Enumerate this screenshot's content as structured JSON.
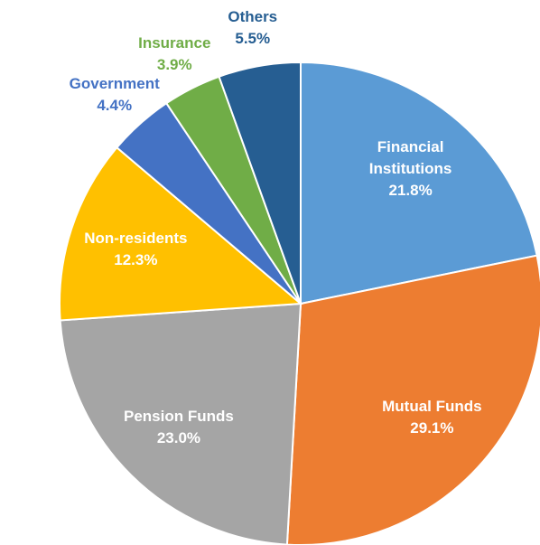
{
  "chart_data": {
    "type": "pie",
    "categories": [
      "Financial Institutions",
      "Mutual Funds",
      "Pension Funds",
      "Non-residents",
      "Government",
      "Insurance",
      "Others"
    ],
    "values": [
      21.8,
      29.1,
      23.0,
      12.3,
      4.4,
      3.9,
      5.5
    ],
    "value_labels": [
      "21.8%",
      "29.1%",
      "23.0%",
      "12.3%",
      "4.4%",
      "3.9%",
      "5.5%"
    ],
    "colors": [
      "#5b9bd5",
      "#ed7d31",
      "#a5a5a5",
      "#ffc000",
      "#4472c4",
      "#70ad47",
      "#265e92"
    ]
  }
}
